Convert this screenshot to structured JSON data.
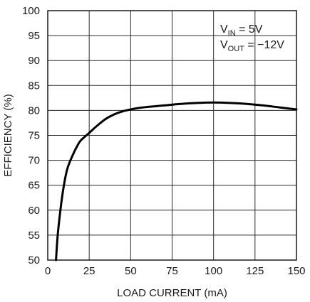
{
  "chart_data": {
    "type": "line",
    "xlabel": "LOAD CURRENT (mA)",
    "ylabel": "EFFICIENCY (%)",
    "xlim": [
      0,
      150
    ],
    "ylim": [
      50,
      100
    ],
    "xticks": [
      0,
      25,
      50,
      75,
      100,
      125,
      150
    ],
    "yticks": [
      50,
      55,
      60,
      65,
      70,
      75,
      80,
      85,
      90,
      95,
      100
    ],
    "grid": true,
    "annotation": {
      "line1": {
        "label": "V",
        "subscript": "IN",
        "value": " = 5V"
      },
      "line2": {
        "label": "V",
        "subscript": "OUT",
        "value": " = −12V"
      },
      "placement": "top-right"
    },
    "series": [
      {
        "x": [
          5,
          6,
          8,
          10,
          12,
          15,
          18,
          20,
          25,
          30,
          35,
          40,
          45,
          50,
          55,
          60,
          70,
          80,
          90,
          100,
          110,
          120,
          130,
          140,
          150
        ],
        "y": [
          50,
          55,
          61,
          65.5,
          68.5,
          71,
          73,
          74,
          75.5,
          77,
          78.3,
          79.2,
          79.8,
          80.2,
          80.5,
          80.7,
          81,
          81.3,
          81.5,
          81.6,
          81.5,
          81.3,
          81,
          80.6,
          80.2
        ]
      }
    ]
  }
}
